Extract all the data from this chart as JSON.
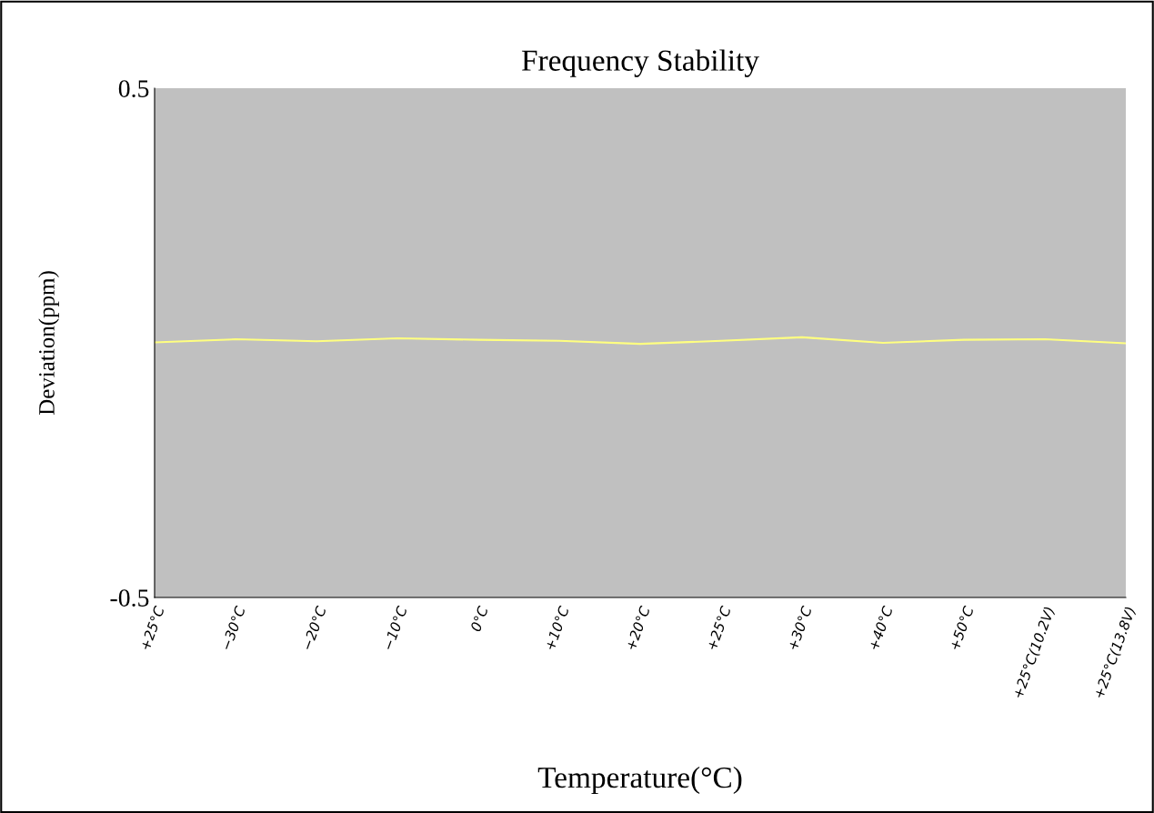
{
  "chart_data": {
    "type": "line",
    "title": "Frequency Stability",
    "xlabel": "Temperature(°C)",
    "ylabel": "Deviation(ppm)",
    "categories": [
      "+25°C",
      "−30°C",
      "−20°C",
      "−10°C",
      "0°C",
      "+10°C",
      "+20°C",
      "+25°C",
      "+30°C",
      "+40°C",
      "+50°C",
      "+25°C(10.2V)",
      "+25°C(13.8V)"
    ],
    "series": [
      {
        "color": "#ffff80",
        "values": [
          0.001,
          0.007,
          0.003,
          0.009,
          0.006,
          0.004,
          -0.002,
          0.004,
          0.011,
          0.0,
          0.006,
          0.007,
          -0.001
        ]
      }
    ],
    "ylim": [
      -0.5,
      0.5
    ],
    "yticks": [
      -0.5,
      0.5
    ],
    "grid": false,
    "marker": "none",
    "line_style": "solid"
  }
}
